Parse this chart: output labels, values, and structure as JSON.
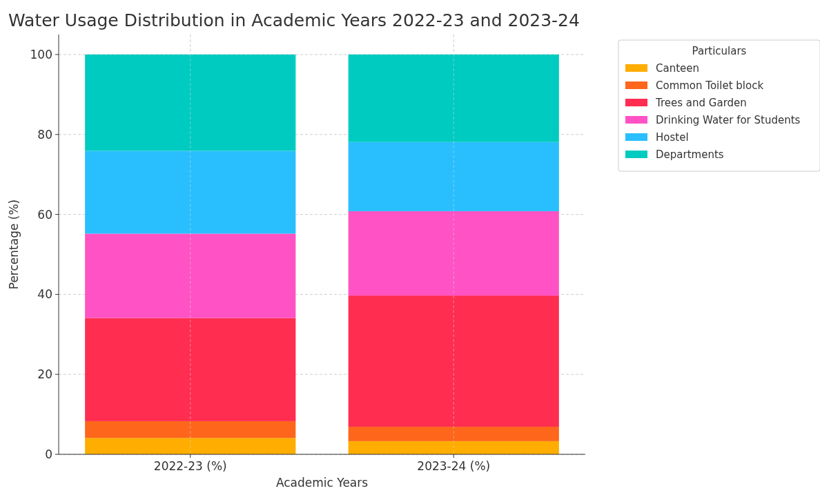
{
  "chart_data": {
    "type": "bar",
    "stacked": true,
    "title": "Water Usage Distribution in Academic Years 2022-23 and 2023-24",
    "xlabel": "Academic Years",
    "ylabel": "Percentage (%)",
    "legend_title": "Particulars",
    "legend": "top right",
    "grid": true,
    "categories": [
      "2022-23 (%)",
      "2023-24 (%)"
    ],
    "series": [
      {
        "name": "Canteen",
        "color": "#ffad00",
        "values": [
          4.1,
          3.3
        ]
      },
      {
        "name": "Common Toilet block",
        "color": "#fd661b",
        "values": [
          4.2,
          3.6
        ]
      },
      {
        "name": "Trees and Garden",
        "color": "#ff2d50",
        "values": [
          25.8,
          32.8
        ]
      },
      {
        "name": "Drinking Water for Students",
        "color": "#ff52c4",
        "values": [
          21.1,
          21.1
        ]
      },
      {
        "name": "Hostel",
        "color": "#29bfff",
        "values": [
          20.7,
          17.3
        ]
      },
      {
        "name": "Departments",
        "color": "#00cbc0",
        "values": [
          24.1,
          21.9
        ]
      }
    ],
    "ylim": [
      0,
      105
    ],
    "yticks": [
      0,
      20,
      40,
      60,
      80,
      100
    ]
  }
}
